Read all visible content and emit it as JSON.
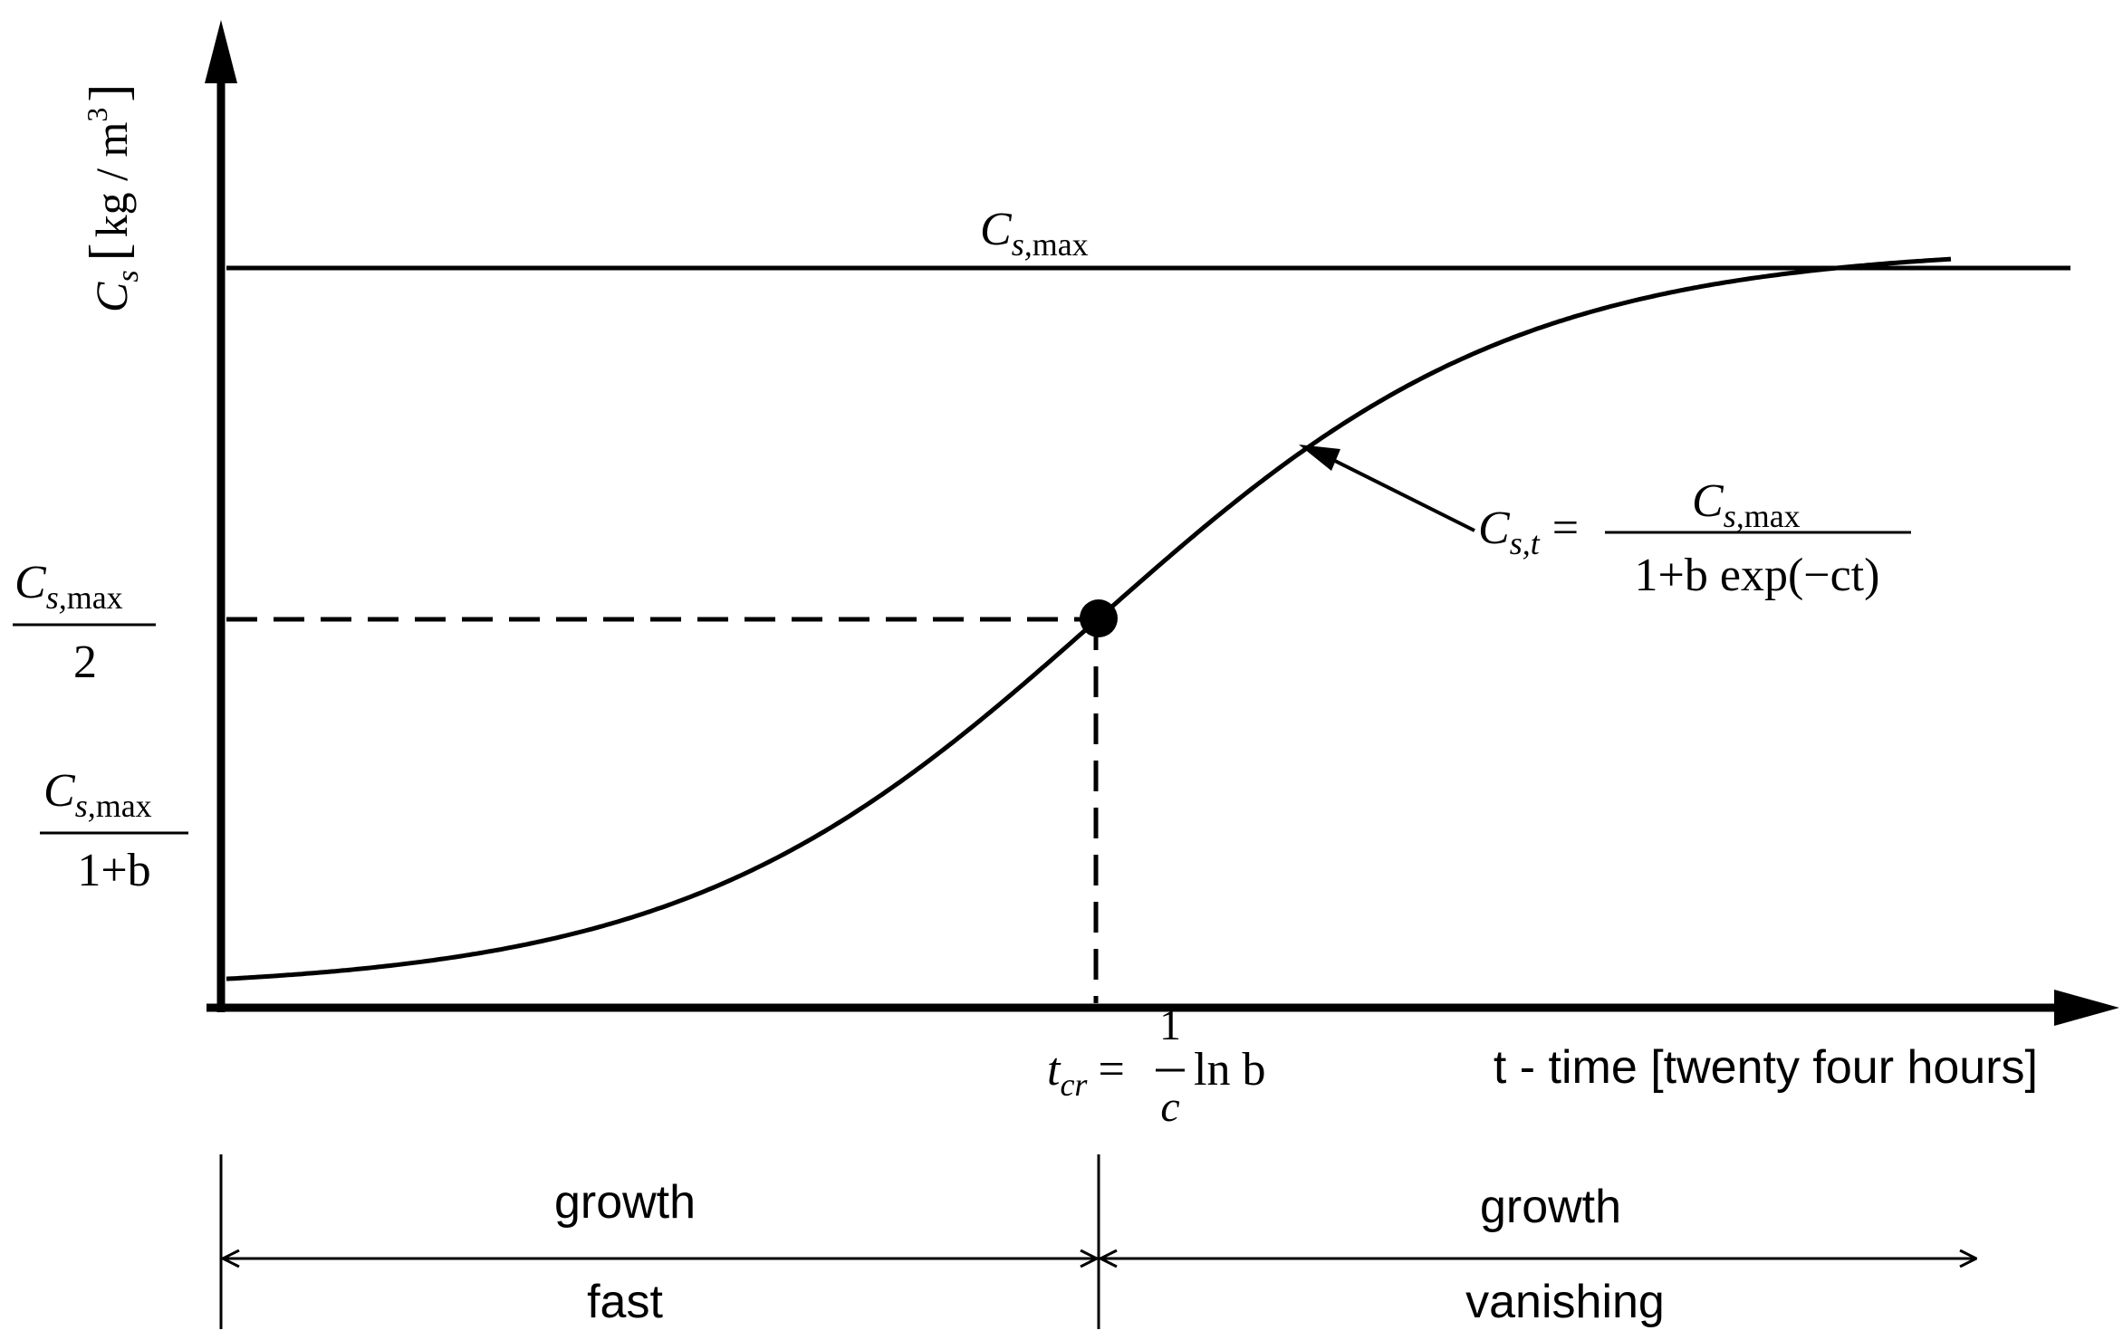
{
  "y_axis_label": {
    "symbol": "C",
    "sub": "s",
    "units": "kg / m",
    "units_sup": "3"
  },
  "x_axis_label": "t - time [twenty four hours]",
  "asymptote_label": {
    "symbol": "C",
    "sub": "s,",
    "sub2": "max"
  },
  "y_tick_half": {
    "num_symbol": "C",
    "num_sub": "s,",
    "num_sub2": "max",
    "den": "2"
  },
  "y_tick_initial": {
    "num_symbol": "C",
    "num_sub": "s,",
    "num_sub2": "max",
    "den": "1+b"
  },
  "curve_formula": {
    "lhs_symbol": "C",
    "lhs_sub": "s,t",
    "eq": "=",
    "num_symbol": "C",
    "num_sub": "s,",
    "num_sub2": "max",
    "den": "1+b exp(−ct)"
  },
  "t_critical": {
    "symbol": "t",
    "sub": "cr",
    "eq": "=",
    "frac_num": "1",
    "frac_den": "c",
    "tail": "ln b"
  },
  "phases": [
    {
      "top": "growth",
      "bottom": "fast"
    },
    {
      "top": "growth",
      "bottom": "vanishing"
    }
  ],
  "colors": {
    "ink": "#000000",
    "background": "#ffffff"
  }
}
